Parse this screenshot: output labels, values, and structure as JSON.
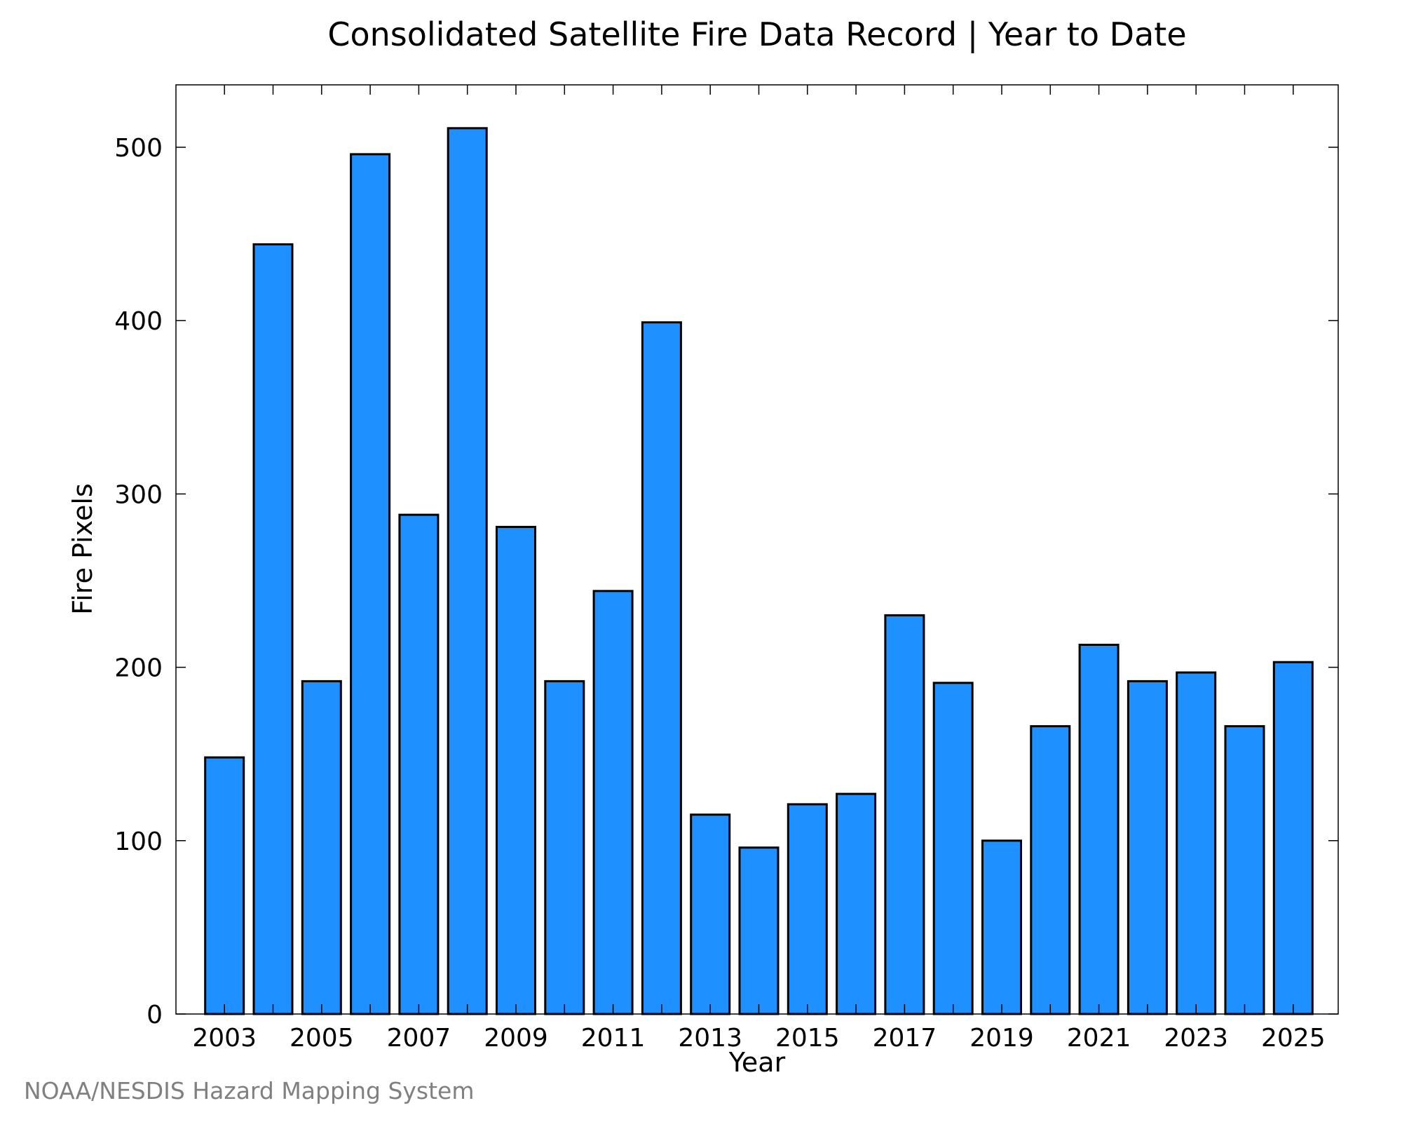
{
  "chart_data": {
    "type": "bar",
    "title": "Consolidated Satellite Fire Data Record | Year to Date",
    "xlabel": "Year",
    "ylabel": "Fire Pixels",
    "categories": [
      "2003",
      "2004",
      "2005",
      "2006",
      "2007",
      "2008",
      "2009",
      "2010",
      "2011",
      "2012",
      "2013",
      "2014",
      "2015",
      "2016",
      "2017",
      "2018",
      "2019",
      "2020",
      "2021",
      "2022",
      "2023",
      "2024",
      "2025"
    ],
    "values": [
      148,
      444,
      192,
      496,
      288,
      511,
      281,
      192,
      244,
      399,
      115,
      96,
      121,
      127,
      230,
      191,
      100,
      166,
      213,
      192,
      197,
      166,
      203
    ],
    "x_tick_labels": [
      "2003",
      "2005",
      "2007",
      "2009",
      "2011",
      "2013",
      "2015",
      "2017",
      "2019",
      "2021",
      "2023",
      "2025"
    ],
    "y_ticks": [
      0,
      100,
      200,
      300,
      400,
      500
    ],
    "ylim": [
      0,
      536
    ],
    "grid": false,
    "bar_color": "#1e90ff",
    "edge_color": "#000000"
  },
  "footer": {
    "source": "NOAA/NESDIS Hazard Mapping System"
  }
}
